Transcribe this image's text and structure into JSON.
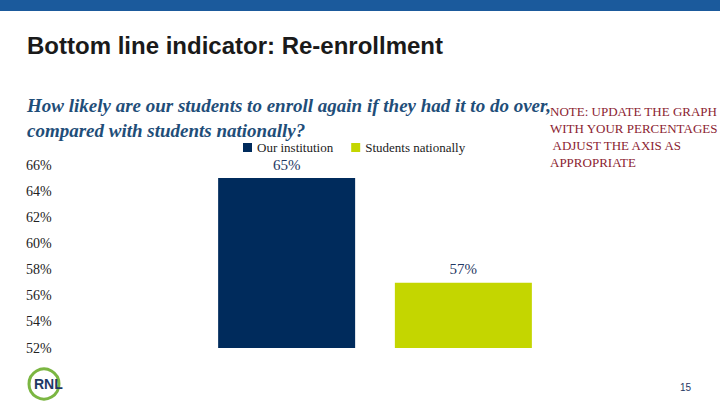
{
  "chart_data": {
    "type": "bar",
    "title": "Bottom line indicator: Re-enrollment",
    "subtitle": "How likely are our students to enroll again if they had it to do over, compared with students nationally?",
    "annotations": [
      "NOTE: UPDATE THE GRAPH WITH YOUR PERCENTAGES AND ADJUST THE AXIS AS APPROPRIATE"
    ],
    "categories": [
      null
    ],
    "series": [
      {
        "name": "Our institution",
        "color": "#002b5c",
        "values": [
          65
        ],
        "value_labels": [
          "65%"
        ]
      },
      {
        "name": "Students nationally",
        "color": "#c4d600",
        "values": [
          57
        ],
        "value_labels": [
          "57%"
        ]
      }
    ],
    "ylim": [
      52,
      66
    ],
    "yticks": [
      {
        "value": 52,
        "label": "52%"
      },
      {
        "value": 54,
        "label": "54%"
      },
      {
        "value": 56,
        "label": "56%"
      },
      {
        "value": 58,
        "label": "58%"
      },
      {
        "value": 60,
        "label": "60%"
      },
      {
        "value": 62,
        "label": "62%"
      },
      {
        "value": 64,
        "label": "64%"
      },
      {
        "value": 66,
        "label": "66%"
      }
    ],
    "grid": false,
    "legend": "top",
    "data_labels": true,
    "tick_labels": "y"
  },
  "page": {
    "logo": "RNL",
    "page_number": "15"
  }
}
